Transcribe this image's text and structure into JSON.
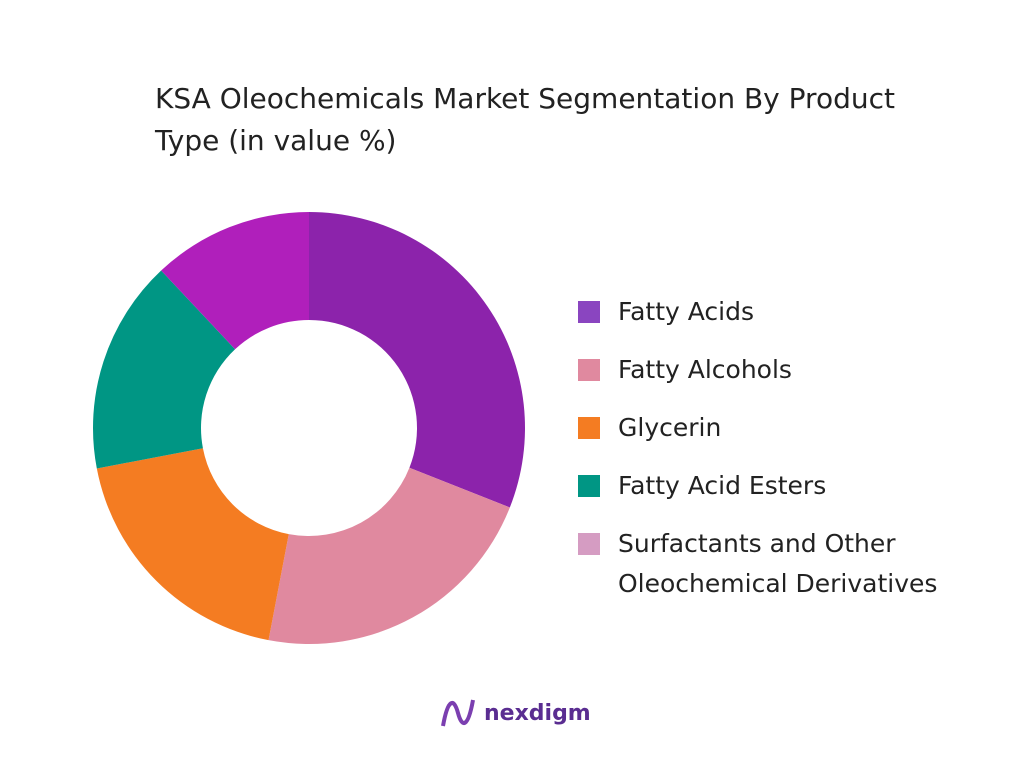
{
  "chart_data": {
    "type": "donut",
    "title": "KSA Oleochemicals Market Segmentation By Product Type (in value %)",
    "categories": [
      "Fatty Acids",
      "Fatty Alcohols",
      "Glycerin",
      "Fatty Acid Esters",
      "Surfactants and Other Oleochemical Derivatives"
    ],
    "values": [
      31,
      22,
      19,
      16,
      12
    ],
    "colors": [
      "#8c23ab",
      "#e0899f",
      "#f47c22",
      "#009684",
      "#b01fbb"
    ],
    "legend_colors": [
      "#8a45c0",
      "#e0899f",
      "#f47c22",
      "#009684",
      "#d59cc2"
    ],
    "legend": "right"
  },
  "logo": "nexdigm"
}
